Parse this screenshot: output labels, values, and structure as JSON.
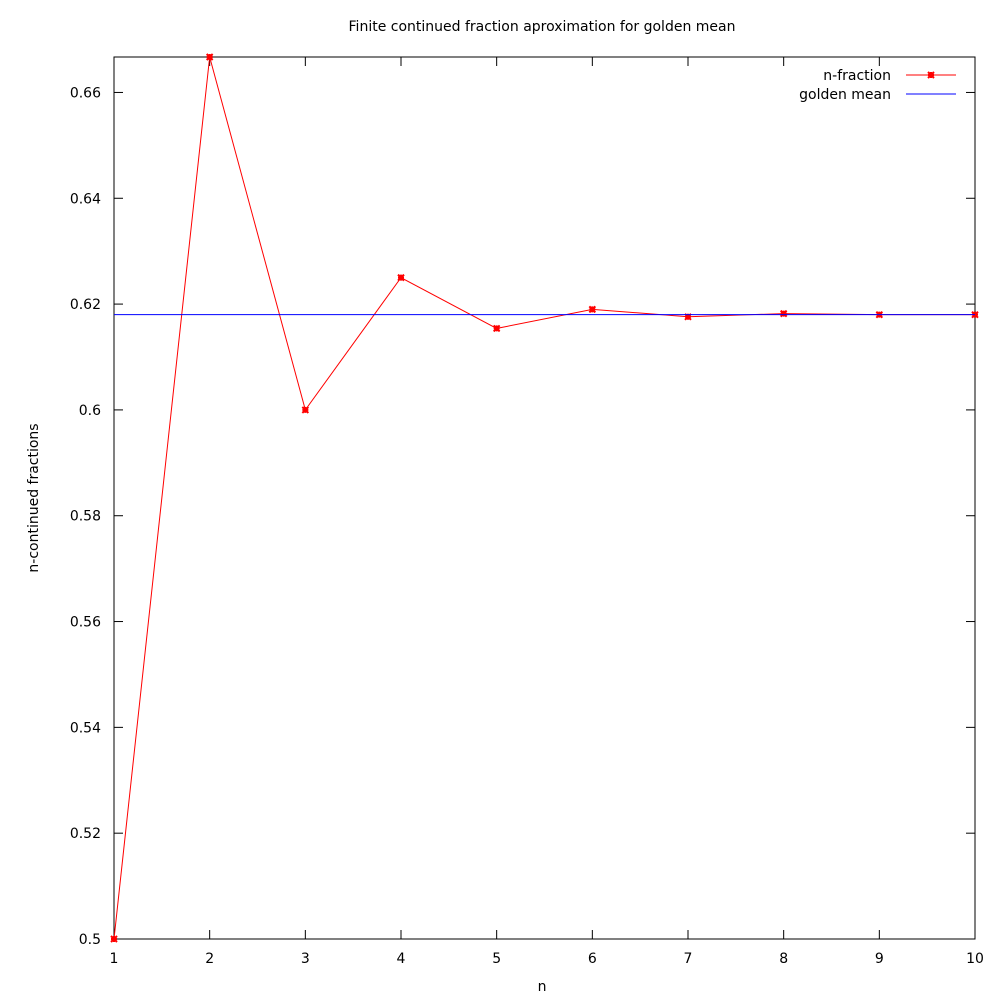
{
  "chart_data": {
    "type": "line",
    "title": "Finite continued fraction aproximation for golden mean",
    "xlabel": "n",
    "ylabel": "n-continued fractions",
    "xlim": [
      1,
      10
    ],
    "ylim": [
      0.5,
      0.6667
    ],
    "x_ticks": [
      "1",
      "2",
      "3",
      "4",
      "5",
      "6",
      "7",
      "8",
      "9",
      "10"
    ],
    "x_tick_values": [
      1,
      2,
      3,
      4,
      5,
      6,
      7,
      8,
      9,
      10
    ],
    "y_ticks": [
      "0.5",
      "0.52",
      "0.54",
      "0.56",
      "0.58",
      "0.6",
      "0.62",
      "0.64",
      "0.66"
    ],
    "y_tick_values": [
      0.5,
      0.52,
      0.54,
      0.56,
      0.58,
      0.6,
      0.62,
      0.64,
      0.66
    ],
    "grid": false,
    "legend_position": "top-right",
    "series": [
      {
        "name": "n-fraction",
        "color": "#ff0000",
        "style": "linespoints",
        "x": [
          1,
          2,
          3,
          4,
          5,
          6,
          7,
          8,
          9,
          10
        ],
        "y": [
          0.5,
          0.6667,
          0.6,
          0.625,
          0.6154,
          0.619,
          0.6176,
          0.6182,
          0.618,
          0.618
        ]
      },
      {
        "name": "golden mean",
        "color": "#0000ff",
        "style": "line",
        "x": [
          1,
          10
        ],
        "y": [
          0.618,
          0.618
        ]
      }
    ]
  }
}
